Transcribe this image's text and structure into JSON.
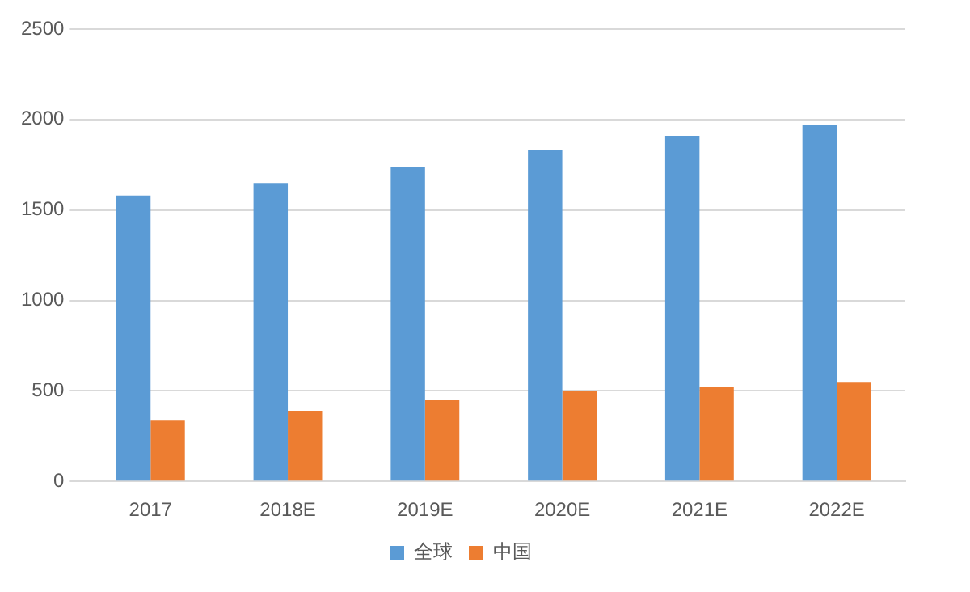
{
  "chart_data": {
    "type": "bar",
    "categories": [
      "2017",
      "2018E",
      "2019E",
      "2020E",
      "2021E",
      "2022E"
    ],
    "series": [
      {
        "name": "全球",
        "color": "#5b9bd5",
        "values": [
          1580,
          1650,
          1740,
          1830,
          1910,
          1970
        ]
      },
      {
        "name": "中国",
        "color": "#ed7d31",
        "values": [
          340,
          390,
          450,
          500,
          520,
          550
        ]
      }
    ],
    "ylim": [
      0,
      2500
    ],
    "yticks": [
      0,
      500,
      1000,
      1500,
      2000,
      2500
    ],
    "grid": "y",
    "legend": "bottom"
  }
}
